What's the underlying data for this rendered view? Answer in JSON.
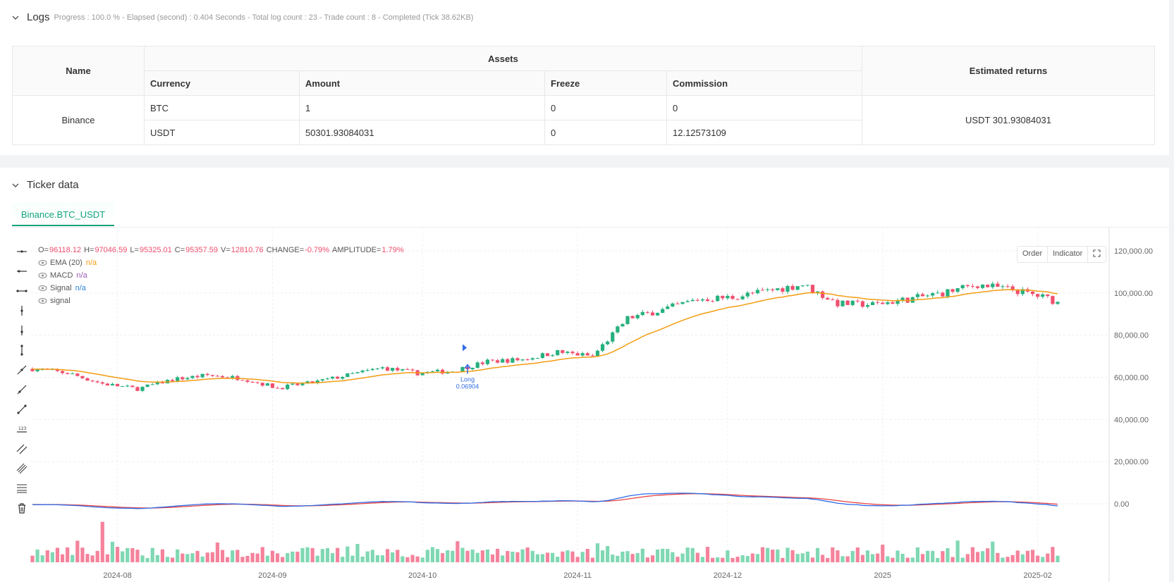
{
  "logs": {
    "title": "Logs",
    "status": "Progress : 100.0 % - Elapsed (second) : 0.404 Seconds - Total log count : 23 - Trade count : 8 - Completed (Tick 38.62KB)"
  },
  "assets_table": {
    "name_header": "Name",
    "assets_header": "Assets",
    "returns_header": "Estimated returns",
    "columns": [
      "Currency",
      "Amount",
      "Freeze",
      "Commission"
    ],
    "exchange": "Binance",
    "rows": [
      {
        "currency": "BTC",
        "amount": "1",
        "freeze": "0",
        "commission": "0"
      },
      {
        "currency": "USDT",
        "amount": "50301.93084031",
        "freeze": "0",
        "commission": "12.12573109"
      }
    ],
    "estimated_returns": "USDT 301.93084031"
  },
  "ticker": {
    "title": "Ticker data",
    "tab": "Binance.BTC_USDT",
    "buttons": {
      "order": "Order",
      "indicator": "Indicator"
    },
    "ohlc": {
      "o_label": "O=",
      "o": "96118.12",
      "h_label": "H=",
      "h": "97046.59",
      "l_label": "L=",
      "l": "95325.01",
      "c_label": "C=",
      "c": "95357.59",
      "v_label": "V=",
      "v": "12810.76",
      "change_label": "CHANGE=",
      "change": "-0.79%",
      "amp_label": "AMPLITUDE=",
      "amp": "1.79%"
    },
    "legend": [
      {
        "name": "EMA (20)",
        "value": "n/a",
        "color": "#f39c12"
      },
      {
        "name": "MACD",
        "value": "n/a",
        "color": "#9b59b6"
      },
      {
        "name": "Signal",
        "value": "n/a",
        "color": "#2e86de"
      },
      {
        "name": "signal",
        "value": "",
        "color": "#555555"
      }
    ],
    "colors": {
      "up": "#26b07d",
      "down": "#f0506e",
      "ema": "#f39c12",
      "macd": "#2e6be6",
      "signal": "#e84343",
      "annotation": "#2e6be6"
    }
  },
  "chart_data": {
    "type": "candlestick",
    "y_ticks": [
      "120,000.00",
      "100,000.00",
      "80,000.00",
      "60,000.00",
      "40,000.00",
      "20,000.00",
      "0.00"
    ],
    "y_tick_values": [
      120000,
      100000,
      80000,
      60000,
      40000,
      20000,
      0
    ],
    "x_ticks": [
      "2024-08",
      "2024-09",
      "2024-10",
      "2024-11",
      "2024-12",
      "2025",
      "2025-02"
    ],
    "annotation": {
      "label": "Long",
      "value": "0.06904",
      "date": "2024-10-10"
    },
    "price_anchors": [
      [
        "2024-07-15",
        64000
      ],
      [
        "2024-07-22",
        62000
      ],
      [
        "2024-07-29",
        57000
      ],
      [
        "2024-08-05",
        54500
      ],
      [
        "2024-08-12",
        59000
      ],
      [
        "2024-08-19",
        61000
      ],
      [
        "2024-08-26",
        59500
      ],
      [
        "2024-09-02",
        55000
      ],
      [
        "2024-09-09",
        57500
      ],
      [
        "2024-09-16",
        61000
      ],
      [
        "2024-09-23",
        64500
      ],
      [
        "2024-09-30",
        62000
      ],
      [
        "2024-10-07",
        63000
      ],
      [
        "2024-10-14",
        67500
      ],
      [
        "2024-10-21",
        68500
      ],
      [
        "2024-10-28",
        72000
      ],
      [
        "2024-11-04",
        70000
      ],
      [
        "2024-11-11",
        88000
      ],
      [
        "2024-11-18",
        92000
      ],
      [
        "2024-11-25",
        97000
      ],
      [
        "2024-12-02",
        98000
      ],
      [
        "2024-12-09",
        101000
      ],
      [
        "2024-12-16",
        104000
      ],
      [
        "2024-12-23",
        95000
      ],
      [
        "2024-12-30",
        94500
      ],
      [
        "2025-01-06",
        97000
      ],
      [
        "2025-01-13",
        100000
      ],
      [
        "2025-01-20",
        104000
      ],
      [
        "2025-01-27",
        101500
      ],
      [
        "2025-02-03",
        97500
      ],
      [
        "2025-02-05",
        95400
      ]
    ]
  }
}
